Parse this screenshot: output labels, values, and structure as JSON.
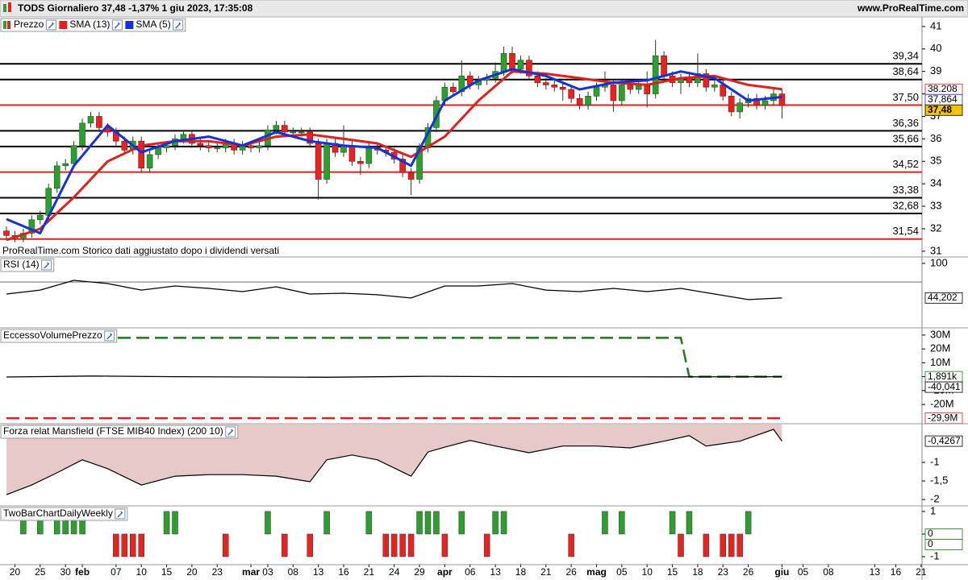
{
  "header": {
    "title": "TODS Giornaliero 37,48 -1,37% 1 giu 2023, 17:35:08",
    "site": "www.ProRealTime.com"
  },
  "chart_data": [
    {
      "type": "candlestick",
      "title": "Prezzo",
      "annotation": "ProRealTime.com Storico dati aggiustato dopo i dividendi versati",
      "up_color": "#2e9e2e",
      "down_color": "#e8231f",
      "open": [
        31.9,
        31.7,
        31.6,
        31.8,
        32.4,
        32.6,
        33.8,
        34.8,
        34.9,
        35.7,
        36.7,
        37.0,
        36.5,
        36.3,
        35.9,
        35.5,
        35.9,
        34.7,
        35.3,
        35.6,
        35.7,
        36.0,
        36.2,
        35.8,
        35.7,
        35.6,
        35.6,
        35.8,
        35.5,
        35.7,
        35.6,
        35.7,
        36.4,
        36.6,
        36.3,
        36.3,
        36.3,
        35.8,
        34.2,
        35.8,
        35.4,
        35.7,
        35.0,
        34.9,
        35.6,
        35.5,
        35.4,
        35.1,
        34.5,
        34.2,
        35.6,
        36.5,
        37.7,
        38.3,
        38.1,
        38.8,
        38.4,
        38.6,
        38.7,
        39.0,
        39.8,
        39.1,
        39.5,
        38.8,
        38.5,
        38.4,
        38.3,
        38.2,
        37.8,
        37.5,
        37.9,
        38.3,
        38.4,
        37.7,
        38.4,
        38.2,
        38.4,
        38.0,
        39.7,
        38.8,
        38.5,
        38.7,
        38.5,
        38.9,
        38.3,
        38.4,
        37.9,
        37.2,
        37.6,
        37.8,
        37.5,
        37.7,
        38.0
      ],
      "high": [
        32.1,
        31.9,
        32.0,
        32.6,
        32.8,
        34.0,
        35.0,
        35.1,
        35.9,
        36.9,
        37.2,
        37.2,
        36.7,
        36.5,
        36.1,
        36.1,
        36.1,
        35.5,
        35.8,
        35.9,
        36.2,
        36.4,
        36.4,
        36.0,
        35.9,
        35.8,
        36.0,
        36.0,
        35.9,
        35.9,
        35.9,
        36.6,
        36.8,
        36.8,
        36.5,
        36.5,
        36.5,
        36.0,
        36.0,
        36.0,
        36.6,
        35.9,
        35.2,
        35.8,
        35.8,
        35.7,
        35.6,
        35.3,
        34.7,
        35.8,
        36.7,
        37.9,
        38.5,
        38.5,
        39.5,
        39.0,
        38.8,
        38.9,
        39.4,
        40.1,
        40.1,
        39.7,
        39.7,
        39.0,
        38.7,
        38.6,
        38.5,
        38.4,
        38.0,
        38.1,
        38.5,
        39.0,
        38.6,
        38.6,
        38.6,
        38.6,
        39.0,
        40.4,
        39.9,
        39.0,
        38.9,
        38.9,
        39.8,
        39.1,
        38.6,
        38.6,
        38.1,
        37.8,
        38.0,
        38.0,
        37.9,
        38.2,
        38.2
      ],
      "low": [
        31.5,
        31.4,
        31.4,
        31.6,
        32.2,
        32.4,
        33.6,
        34.6,
        34.7,
        35.5,
        36.5,
        36.3,
        36.1,
        35.7,
        35.3,
        35.3,
        34.5,
        34.5,
        35.1,
        35.4,
        35.5,
        35.8,
        35.6,
        35.5,
        35.4,
        35.4,
        35.4,
        35.3,
        35.3,
        35.4,
        35.4,
        35.5,
        36.2,
        36.1,
        36.1,
        36.1,
        35.6,
        33.3,
        34.0,
        35.2,
        35.2,
        34.8,
        34.4,
        34.7,
        35.3,
        35.2,
        34.9,
        34.3,
        33.5,
        34.0,
        35.4,
        36.3,
        37.5,
        37.9,
        37.9,
        38.2,
        38.2,
        38.4,
        38.5,
        38.8,
        38.9,
        38.9,
        38.6,
        38.3,
        38.2,
        38.1,
        37.7,
        37.6,
        37.3,
        37.3,
        37.7,
        38.1,
        37.2,
        37.5,
        38.0,
        38.0,
        37.4,
        37.8,
        38.6,
        38.3,
        38.0,
        38.3,
        38.3,
        38.1,
        38.1,
        37.7,
        37.0,
        36.9,
        37.4,
        37.3,
        37.3,
        37.5,
        36.9
      ],
      "close": [
        31.7,
        31.6,
        31.8,
        32.4,
        32.6,
        33.8,
        34.8,
        34.9,
        35.7,
        36.7,
        37.0,
        36.5,
        36.3,
        35.9,
        35.5,
        35.9,
        34.7,
        35.3,
        35.6,
        35.7,
        36.0,
        36.2,
        35.8,
        35.7,
        35.6,
        35.6,
        35.8,
        35.5,
        35.7,
        35.6,
        35.7,
        36.4,
        36.6,
        36.3,
        36.3,
        36.3,
        35.8,
        34.2,
        35.8,
        35.4,
        35.7,
        35.0,
        34.9,
        35.6,
        35.5,
        35.4,
        35.1,
        34.5,
        34.2,
        35.6,
        36.5,
        37.7,
        38.3,
        38.1,
        38.8,
        38.4,
        38.6,
        38.7,
        39.0,
        39.8,
        39.1,
        39.5,
        38.8,
        38.5,
        38.4,
        38.3,
        38.2,
        37.8,
        37.5,
        37.9,
        38.3,
        38.4,
        37.7,
        38.4,
        38.2,
        38.4,
        38.0,
        39.7,
        38.8,
        38.5,
        38.7,
        38.5,
        38.9,
        38.3,
        38.4,
        37.9,
        37.2,
        37.6,
        37.8,
        37.5,
        37.7,
        38.0,
        37.48
      ],
      "series": [
        {
          "name": "SMA (13)",
          "color": "#e0201c",
          "x": [
            0,
            4,
            8,
            12,
            16,
            20,
            24,
            28,
            32,
            36,
            40,
            44,
            48,
            52,
            56,
            60,
            64,
            68,
            72,
            76,
            80,
            84,
            88,
            92
          ],
          "values": [
            31.5,
            32.0,
            33.4,
            35.0,
            35.7,
            35.9,
            35.9,
            35.7,
            36.1,
            36.2,
            36.0,
            35.8,
            35.2,
            36.1,
            37.7,
            39.0,
            38.9,
            38.7,
            38.5,
            38.4,
            38.7,
            38.8,
            38.4,
            38.208
          ]
        },
        {
          "name": "SMA (5)",
          "color": "#1432d8",
          "x": [
            0,
            4,
            8,
            12,
            16,
            20,
            24,
            28,
            32,
            36,
            40,
            44,
            48,
            52,
            56,
            60,
            64,
            68,
            72,
            76,
            80,
            84,
            88,
            92
          ],
          "values": [
            32.43,
            31.8,
            34.8,
            36.6,
            35.4,
            35.9,
            36.1,
            35.7,
            36.3,
            35.9,
            35.7,
            35.6,
            34.8,
            37.7,
            38.6,
            39.1,
            38.8,
            38.2,
            38.5,
            38.6,
            39.0,
            38.7,
            37.7,
            37.864
          ]
        }
      ],
      "levels": [
        {
          "value": 39.34,
          "label": "39,34",
          "color": "#000000"
        },
        {
          "value": 38.64,
          "label": "38,64",
          "color": "#000000"
        },
        {
          "value": 37.5,
          "label": "37,50",
          "color": "#e0201c"
        },
        {
          "value": 36.36,
          "label": "36,36",
          "color": "#000000"
        },
        {
          "value": 35.66,
          "label": "35,66",
          "color": "#000000"
        },
        {
          "value": 34.52,
          "label": "34,52",
          "color": "#e0201c"
        },
        {
          "value": 33.38,
          "label": "33,38",
          "color": "#000000"
        },
        {
          "value": 32.68,
          "label": "32,68",
          "color": "#000000"
        },
        {
          "value": 31.54,
          "label": "31,54",
          "color": "#e0201c"
        }
      ],
      "tags": [
        {
          "value": 38.208,
          "label": "38.208",
          "color": "#e0201c",
          "bg": "#ffffff"
        },
        {
          "value": 37.864,
          "label": "37,864",
          "color": "#1432d8",
          "bg": "#ffffff"
        },
        {
          "value": 37.48,
          "label": "37,48",
          "color": "#000000",
          "bg": "#f5c400"
        }
      ],
      "ylim": [
        30.78,
        41.39
      ],
      "yticks": [
        31,
        32,
        33,
        34,
        35,
        36,
        37,
        38,
        39,
        40,
        41
      ]
    },
    {
      "type": "line",
      "title": "RSI (14)",
      "series": [
        {
          "color": "#000000",
          "x": [
            0,
            4,
            8,
            12,
            16,
            20,
            24,
            28,
            32,
            36,
            40,
            44,
            48,
            52,
            56,
            60,
            64,
            68,
            72,
            76,
            80,
            84,
            88,
            92
          ],
          "values": [
            50.6,
            57,
            72.7,
            67.5,
            57,
            63.6,
            59.7,
            54.5,
            62.3,
            50.6,
            51.9,
            49.4,
            44.2,
            63.6,
            63.6,
            67.5,
            57,
            54.5,
            59.7,
            54.5,
            59.7,
            50.6,
            41.6,
            44.202
          ]
        }
      ],
      "levels": [
        {
          "value": 70,
          "color": "#555555"
        }
      ],
      "tags": [
        {
          "value": 44.202,
          "label": "44,202",
          "color": "#000000",
          "bg": "#ffffff"
        }
      ],
      "ylim": [
        -2.6,
        109
      ],
      "yticks": [
        100
      ]
    },
    {
      "type": "line",
      "title": "EccessoVolumePrezzo",
      "series": [
        {
          "color": "#1a7a1a",
          "dash": true,
          "x": [
            0,
            80,
            81,
            92
          ],
          "values": [
            28000000,
            28000000,
            1891,
            1891
          ]
        },
        {
          "color": "#000000",
          "x": [
            0,
            10,
            20,
            38,
            50,
            60,
            80,
            92
          ],
          "values": [
            -200000,
            500000,
            0,
            -400000,
            300000,
            0,
            -100000,
            -40.041
          ]
        },
        {
          "color": "#e0201c",
          "dash": true,
          "x": [
            0,
            92
          ],
          "values": [
            -29900000,
            -29900000
          ]
        }
      ],
      "tags": [
        {
          "value": 1891,
          "label": "1,891k",
          "color": "#1a7a1a",
          "bg": "#ffffff"
        },
        {
          "value": -40.041,
          "label": "-40,041",
          "color": "#000000",
          "bg": "#ffffff"
        },
        {
          "value": -29900000,
          "label": "-29,9M",
          "color": "#e0201c",
          "bg": "#ffffff"
        }
      ],
      "ylim": [
        -33300000,
        34600000
      ],
      "yticks": [
        {
          "value": 30000000,
          "label": "30M"
        },
        {
          "value": 20000000,
          "label": "20M"
        },
        {
          "value": 10000000,
          "label": "10M"
        },
        0,
        {
          "value": -10000000,
          "label": "-10M"
        },
        {
          "value": -20000000,
          "label": "-20M"
        }
      ]
    },
    {
      "type": "area",
      "title": "Forza relat Mansfield (FTSE MIB40 Index) (200 10)",
      "color": "#e8c9c9",
      "x": [
        0,
        3,
        6,
        9,
        12,
        16,
        20,
        24,
        28,
        32,
        36,
        38,
        41,
        44,
        48,
        50,
        52,
        55,
        58,
        62,
        66,
        70,
        74,
        78,
        81,
        83,
        87,
        91,
        92
      ],
      "values": [
        -1.87,
        -1.61,
        -1.28,
        -0.93,
        -1.17,
        -1.61,
        -1.37,
        -1.33,
        -1.33,
        -1.37,
        -1.52,
        -0.93,
        -0.8,
        -0.93,
        -1.37,
        -0.72,
        -0.59,
        -0.41,
        -0.56,
        -0.74,
        -0.56,
        -0.56,
        -0.61,
        -0.43,
        -0.28,
        -0.56,
        -0.43,
        -0.11,
        -0.4267
      ],
      "tags": [
        {
          "value": -0.4267,
          "label": "-0,4267",
          "color": "#000000",
          "bg": "#ffffff"
        }
      ],
      "ylim": [
        -2.15,
        0.02
      ],
      "yticks": [
        -1,
        {
          "value": -1.5,
          "label": "-1,5"
        },
        -2
      ]
    },
    {
      "type": "bar",
      "title": "TwoBarChartDailyWeekly",
      "up_color": "#2e9e2e",
      "down_color": "#e8231f",
      "values": [
        0,
        0,
        1,
        0,
        1,
        0,
        1,
        1,
        1,
        1,
        0,
        0,
        0,
        -1,
        -1,
        -1,
        -1,
        0,
        0,
        1,
        1,
        0,
        0,
        0,
        0,
        0,
        -1,
        0,
        0,
        0,
        0,
        1,
        0,
        -1,
        0,
        0,
        -1,
        0,
        1,
        0,
        0,
        0,
        0,
        1,
        0,
        -1,
        -1,
        -1,
        -1,
        1,
        1,
        1,
        -1,
        0,
        1,
        0,
        0,
        -1,
        1,
        1,
        0,
        0,
        0,
        0,
        0,
        0,
        0,
        -1,
        0,
        0,
        0,
        1,
        0,
        1,
        0,
        0,
        0,
        0,
        0,
        1,
        -1,
        1,
        0,
        -1,
        0,
        -1,
        -1,
        -1,
        1,
        0,
        0,
        0,
        0
      ],
      "tags": [
        {
          "value": 0,
          "label": "0",
          "color": "#1a7a1a",
          "bg": "#ffffff"
        },
        {
          "value": 0,
          "label": "0",
          "color": "#1a7a1a",
          "bg": "#ffffff"
        }
      ],
      "ylim": [
        -1.32,
        1.21
      ],
      "yticks": [
        1,
        0,
        -1
      ],
      "xticks": [
        {
          "value": 1,
          "label": "20"
        },
        {
          "value": 4,
          "label": "25"
        },
        {
          "value": 7,
          "label": "30"
        },
        {
          "value": 9,
          "label": "feb"
        },
        {
          "value": 13,
          "label": "07"
        },
        {
          "value": 16,
          "label": "10"
        },
        {
          "value": 19,
          "label": "15"
        },
        {
          "value": 22,
          "label": "20"
        },
        {
          "value": 25,
          "label": "23"
        },
        {
          "value": 29,
          "label": "mar"
        },
        {
          "value": 31,
          "label": "03"
        },
        {
          "value": 34,
          "label": "08"
        },
        {
          "value": 37,
          "label": "13"
        },
        {
          "value": 40,
          "label": "16"
        },
        {
          "value": 43,
          "label": "21"
        },
        {
          "value": 46,
          "label": "24"
        },
        {
          "value": 49,
          "label": "29"
        },
        {
          "value": 52,
          "label": "apr"
        },
        {
          "value": 55,
          "label": "06"
        },
        {
          "value": 58,
          "label": "13"
        },
        {
          "value": 61,
          "label": "18"
        },
        {
          "value": 64,
          "label": "21"
        },
        {
          "value": 67,
          "label": "26"
        },
        {
          "value": 70,
          "label": "mag"
        },
        {
          "value": 73,
          "label": "05"
        },
        {
          "value": 76,
          "label": "10"
        },
        {
          "value": 79,
          "label": "15"
        },
        {
          "value": 82,
          "label": "18"
        },
        {
          "value": 85,
          "label": "23"
        },
        {
          "value": 88,
          "label": "26"
        },
        {
          "value": 92,
          "label": "giu"
        },
        {
          "value": 94.5,
          "label": "05"
        },
        {
          "value": 97.5,
          "label": "08"
        },
        {
          "value": 103,
          "label": "13"
        },
        {
          "value": 105.5,
          "label": "16"
        },
        {
          "value": 108.5,
          "label": "21"
        }
      ]
    }
  ]
}
